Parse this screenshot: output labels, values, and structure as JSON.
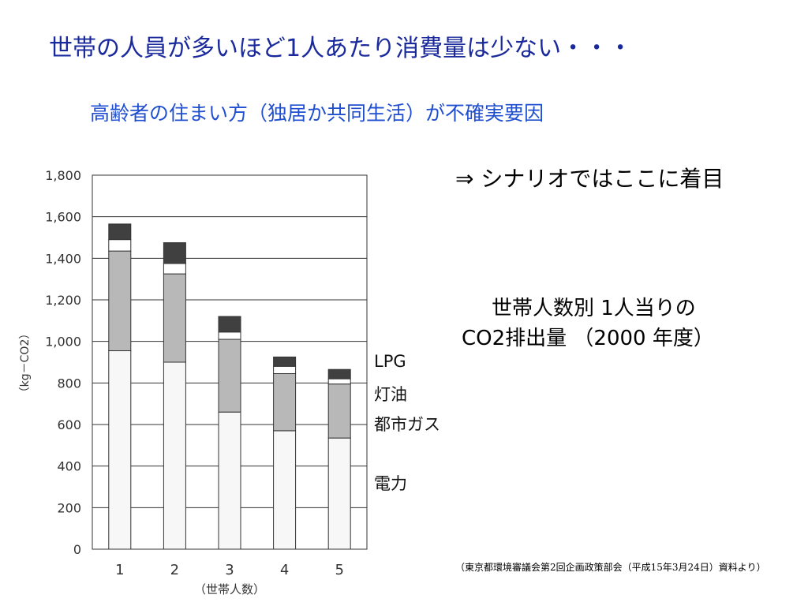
{
  "slide": {
    "title": "世帯の人員が多いほど1人あたり消費量は少ない・・・",
    "subtitle": "高齢者の住まい方（独居か共同生活）が不確実要因",
    "note": "⇒  シナリオではここに着目",
    "caption_line1": "世帯人数別  1人当りの",
    "caption_line2": "CO2排出量 （2000 年度）",
    "source": "（東京都環境審議会第2回企画政策部会（平成15年3月24日）資料より）",
    "colors": {
      "title": "#1a2a9c",
      "subtitle": "#1f4fd0"
    }
  },
  "chart_data": {
    "type": "bar",
    "stacked": true,
    "categories": [
      "1",
      "2",
      "3",
      "4",
      "5"
    ],
    "xlabel": "（世帯人数）",
    "ylabel": "（kg－CO2）",
    "ylim": [
      0,
      1800
    ],
    "yticks": [
      "0",
      "200",
      "400",
      "600",
      "800",
      "1,000",
      "1,200",
      "1,400",
      "1,600",
      "1,800"
    ],
    "grid": true,
    "legend_position": "right",
    "series": [
      {
        "name": "電力",
        "values": [
          955,
          900,
          660,
          570,
          535
        ],
        "color": "#f7f7f7"
      },
      {
        "name": "都市ガス",
        "values": [
          480,
          425,
          350,
          275,
          260
        ],
        "color": "#b8b8b8"
      },
      {
        "name": "灯油",
        "values": [
          55,
          50,
          35,
          35,
          25
        ],
        "color": "#ffffff"
      },
      {
        "name": "LPG",
        "values": [
          75,
          100,
          75,
          45,
          45
        ],
        "color": "#404040"
      }
    ]
  }
}
